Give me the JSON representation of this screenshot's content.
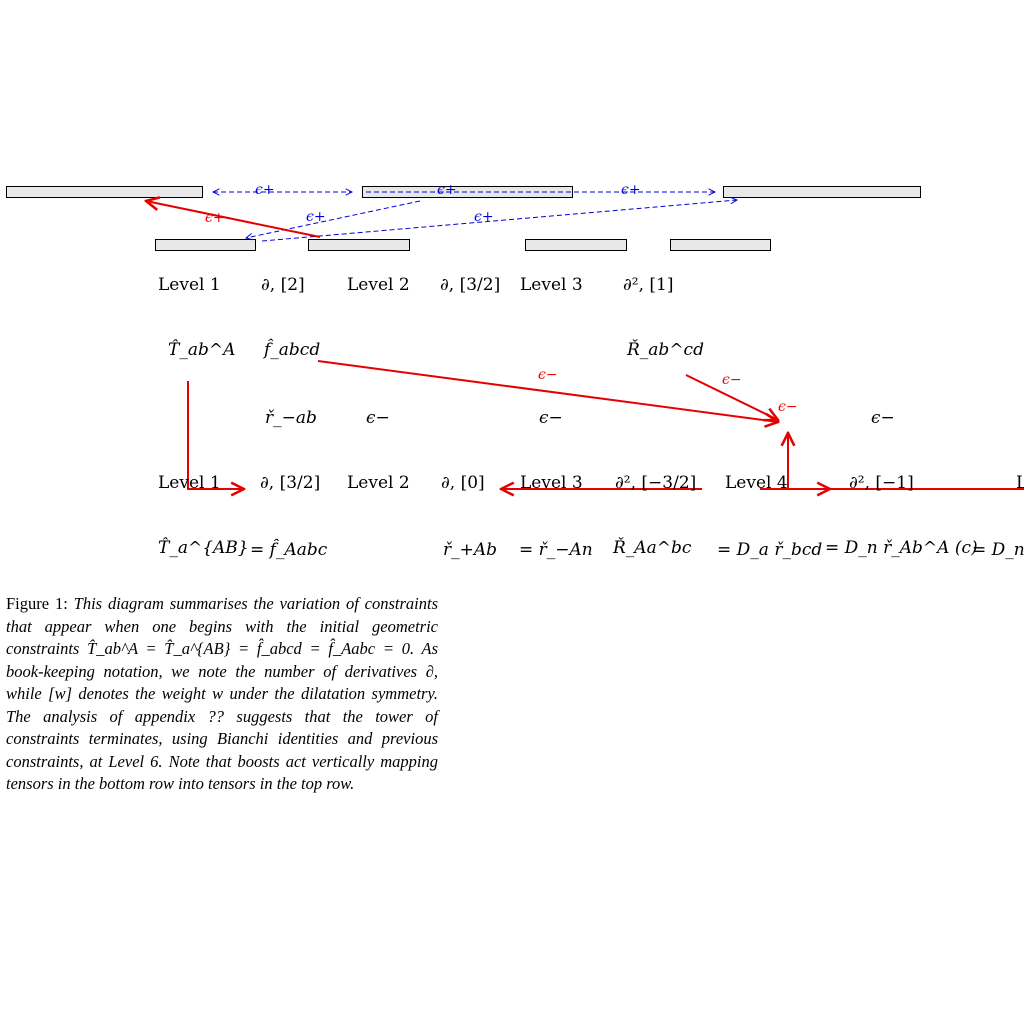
{
  "diagram": {
    "levels_top": [
      "Level 1",
      "Level 2",
      "Level 3"
    ],
    "levels_bottom": [
      "Level 1",
      "Level 2",
      "Level 3",
      "Level 4",
      "L"
    ],
    "top_weights": [
      "∂, [2]",
      "∂, [3/2]",
      "∂², [1]"
    ],
    "bottom_weights": [
      "∂, [3/2]",
      "∂, [0]",
      "∂², [−3/2]",
      "∂², [−1]"
    ],
    "top_tensors": [
      "T̂_ab^A",
      "f̂_abcd",
      "Ř_ab^cd"
    ],
    "middle_row": [
      "ř_−ab",
      "ϵ−",
      "ϵ−",
      "ϵ−"
    ],
    "bottom_row": [
      "T̂_a^{AB}",
      "= f̂_Aabc",
      "ř_+Ab",
      "= ř_−An",
      "Ř_Aa^bc",
      "= D_a ř_bcd",
      "= D_n ř_Ab^A (c)",
      "= D_n,"
    ],
    "arrow_labels": [
      "ϵ+",
      "ϵ+",
      "ϵ+",
      "ϵ+",
      "ϵ+",
      "ϵ+",
      "ϵ−",
      "ϵ−",
      "ϵ−"
    ],
    "colors": {
      "red": "#e60000",
      "blue": "#0000dd",
      "box_fill": "#e8e8e8"
    }
  },
  "caption": {
    "label": "Figure 1:",
    "text": "This diagram summarises the variation of constraints that appear when one begins with the initial geometric constraints T̂_ab^A = T̂_a^{AB} = f̂_abcd = f̂_Aabc = 0. As book-keeping notation, we note the number of derivatives ∂, while [w] denotes the weight w under the dilatation symmetry. The analysis of appendix ?? suggests that the tower of constraints terminates, using Bianchi identities and previous constraints, at Level 6. Note that boosts act vertically mapping tensors in the bottom row into tensors in the top row."
  }
}
